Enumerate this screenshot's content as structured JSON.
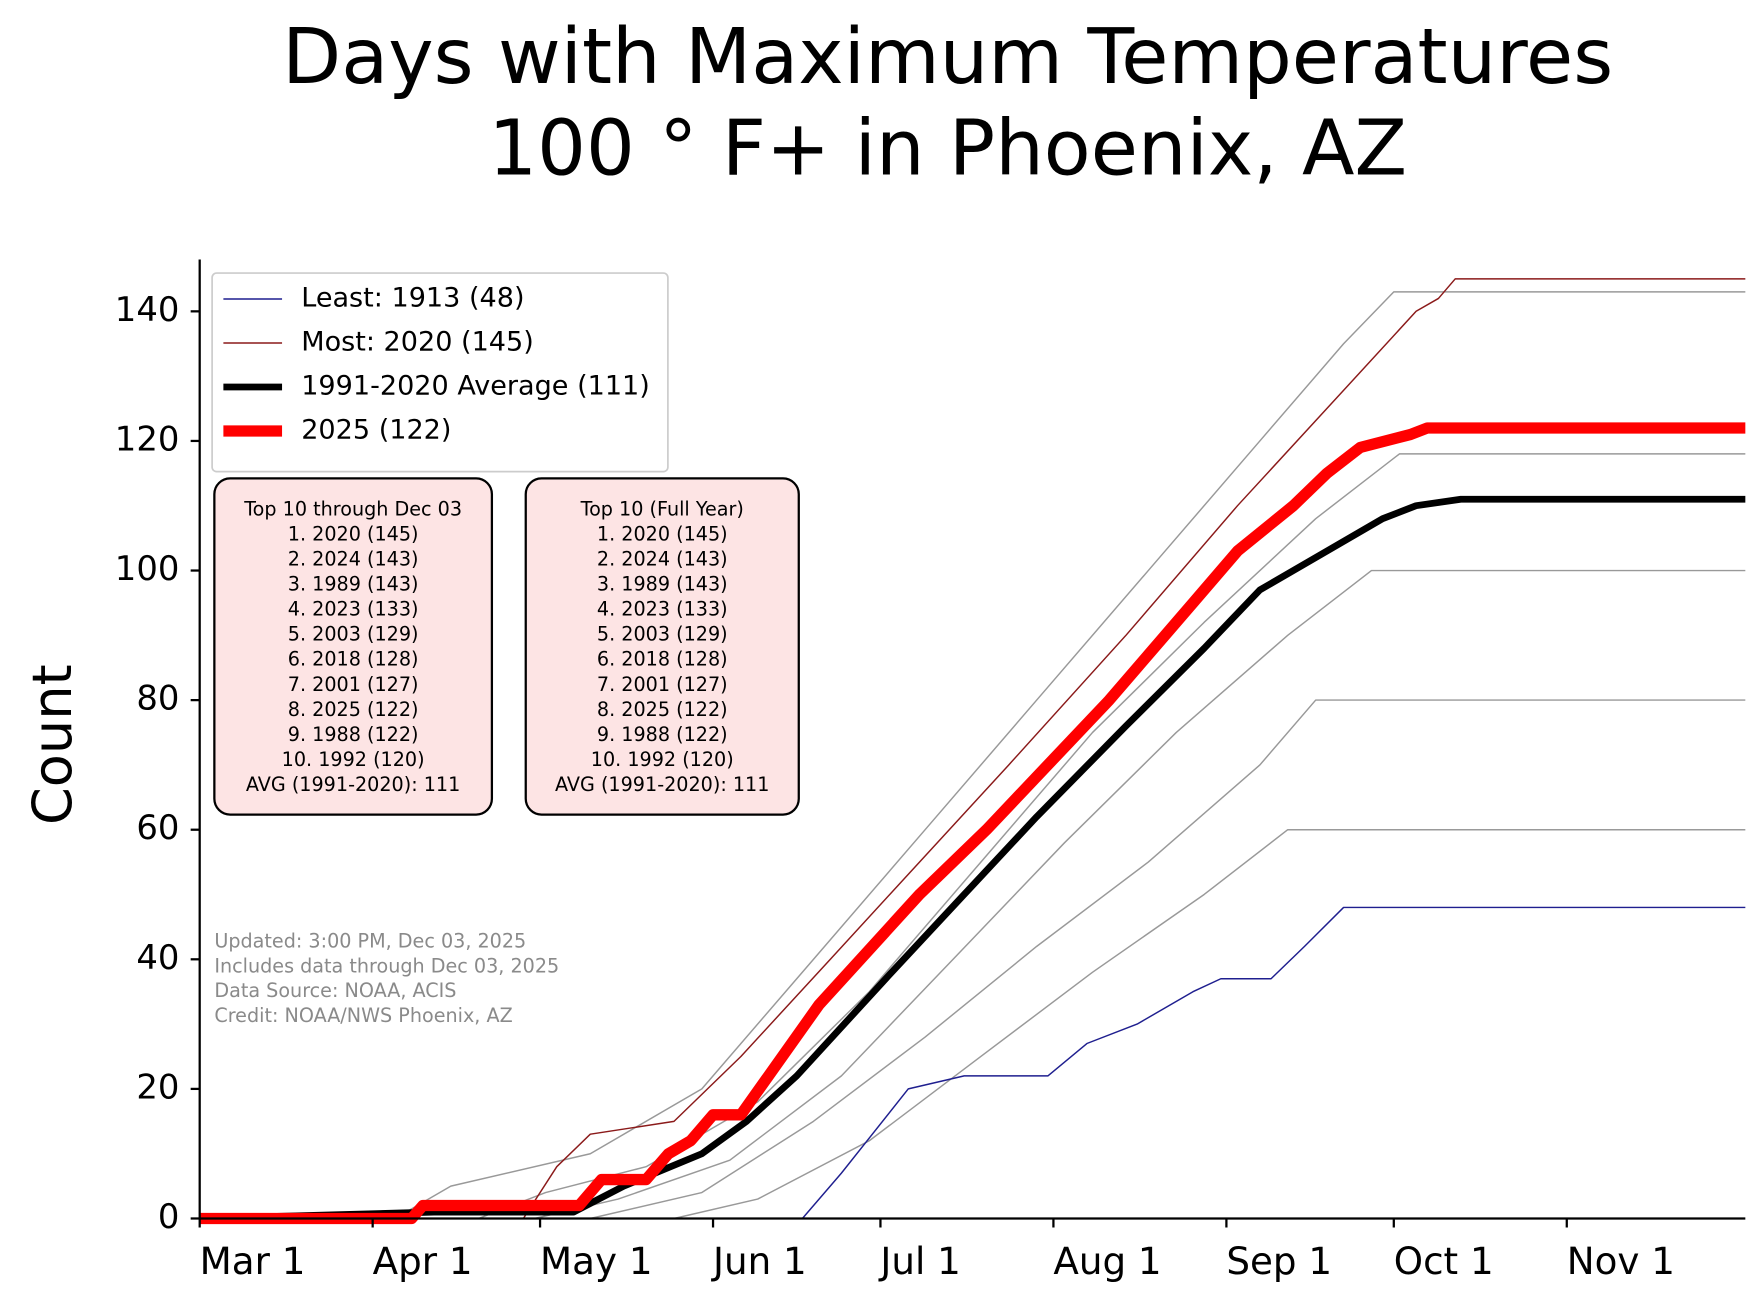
{
  "chart_data": {
    "type": "line",
    "title": [
      "Days with Maximum Temperatures",
      "100 ° F+ in Phoenix, AZ"
    ],
    "ylabel": "Count",
    "xlim": [
      0,
      277
    ],
    "ylim": [
      0,
      148
    ],
    "xticks": [
      {
        "value": 0,
        "label": "Mar 1"
      },
      {
        "value": 31,
        "label": "Apr 1"
      },
      {
        "value": 61,
        "label": "May 1"
      },
      {
        "value": 92,
        "label": "Jun 1"
      },
      {
        "value": 122,
        "label": "Jul 1"
      },
      {
        "value": 153,
        "label": "Aug 1"
      },
      {
        "value": 184,
        "label": "Sep 1"
      },
      {
        "value": 214,
        "label": "Oct 1"
      },
      {
        "value": 245,
        "label": "Nov 1"
      }
    ],
    "yticks": [
      0,
      20,
      40,
      60,
      80,
      100,
      120,
      140
    ],
    "legend": "upper left",
    "series": [
      {
        "color": "#999999",
        "linewidth": 1.3,
        "x": [
          0,
          35,
          45,
          70,
          90,
          110,
          130,
          150,
          170,
          190,
          205,
          214,
          277
        ],
        "values": [
          0,
          0,
          5,
          10,
          20,
          40,
          60,
          80,
          100,
          120,
          135,
          143,
          143
        ]
      },
      {
        "color": "#999999",
        "linewidth": 1.3,
        "x": [
          0,
          50,
          62,
          80,
          100,
          120,
          140,
          160,
          180,
          200,
          215,
          277
        ],
        "values": [
          0,
          0,
          4,
          8,
          18,
          35,
          55,
          75,
          92,
          108,
          118,
          118
        ]
      },
      {
        "color": "#999999",
        "linewidth": 1.3,
        "x": [
          0,
          60,
          75,
          95,
          115,
          135,
          155,
          175,
          195,
          210,
          277
        ],
        "values": [
          0,
          0,
          3,
          9,
          22,
          40,
          58,
          75,
          90,
          100,
          100
        ]
      },
      {
        "color": "#999999",
        "linewidth": 1.3,
        "x": [
          0,
          70,
          90,
          110,
          130,
          150,
          170,
          190,
          200,
          277
        ],
        "values": [
          0,
          0,
          4,
          15,
          28,
          42,
          55,
          70,
          80,
          80
        ]
      },
      {
        "color": "#999999",
        "linewidth": 1.3,
        "x": [
          0,
          85,
          100,
          120,
          140,
          160,
          180,
          195,
          277
        ],
        "values": [
          0,
          0,
          3,
          12,
          25,
          38,
          50,
          60,
          60
        ]
      },
      {
        "name": "Least: 1913 (48)",
        "color": "#1f1f8f",
        "linewidth": 1.3,
        "x": [
          0,
          108,
          115,
          127,
          137,
          152,
          159,
          168,
          178,
          183,
          192,
          198,
          205,
          277
        ],
        "values": [
          0,
          0,
          7,
          20,
          22,
          22,
          27,
          30,
          35,
          37,
          37,
          42,
          48,
          48
        ]
      },
      {
        "name": "Most: 2020 (145)",
        "color": "#8b1a1a",
        "linewidth": 1.3,
        "x": [
          0,
          58,
          64,
          70,
          85,
          97,
          113,
          129,
          145,
          166,
          186,
          202,
          218,
          222,
          225,
          277
        ],
        "values": [
          0,
          0,
          8,
          13,
          15,
          25,
          40,
          55,
          70,
          90,
          110,
          125,
          140,
          142,
          145,
          145
        ]
      },
      {
        "name": "1991-2020 Average (111)",
        "color": "#000000",
        "linewidth": 6,
        "x": [
          0,
          42,
          67,
          76,
          90,
          98,
          107,
          124,
          137,
          150,
          166,
          180,
          190,
          202,
          212,
          218,
          226,
          277
        ],
        "values": [
          0,
          1,
          1,
          5,
          10,
          15,
          22,
          38,
          50,
          62,
          76,
          88,
          97,
          103,
          108,
          110,
          111,
          111
        ]
      },
      {
        "name": "2025 (122)",
        "color": "#ff0000",
        "linewidth": 10,
        "x": [
          0,
          38,
          40,
          68,
          72,
          80,
          84,
          88,
          92,
          97,
          111,
          129,
          141,
          163,
          178,
          186,
          196,
          202,
          208,
          217,
          220,
          277
        ],
        "values": [
          0,
          0,
          2,
          2,
          6,
          6,
          10,
          12,
          16,
          16,
          33,
          50,
          60,
          80,
          95,
          103,
          110,
          115,
          119,
          121,
          122,
          122
        ]
      }
    ],
    "text_boxes": [
      {
        "lines": [
          "Top 10 through Dec 03",
          "1. 2020 (145)",
          "2. 2024 (143)",
          "3. 1989 (143)",
          "4. 2023 (133)",
          "5. 2003 (129)",
          "6. 2018 (128)",
          "7. 2001 (127)",
          "8. 2025 (122)",
          "9. 1988 (122)",
          "10. 1992 (120)",
          "AVG (1991-2020): 111"
        ]
      },
      {
        "lines": [
          "Top 10 (Full Year)",
          "1. 2020 (145)",
          "2. 2024 (143)",
          "3. 1989 (143)",
          "4. 2023 (133)",
          "5. 2003 (129)",
          "6. 2018 (128)",
          "7. 2001 (127)",
          "8. 2025 (122)",
          "9. 1988 (122)",
          "10. 1992 (120)",
          "AVG (1991-2020): 111"
        ]
      }
    ],
    "notes": [
      "Updated: 3:00 PM, Dec 03, 2025",
      "Includes data through Dec 03, 2025",
      "Data Source: NOAA, ACIS",
      "Credit: NOAA/NWS Phoenix, AZ"
    ]
  }
}
